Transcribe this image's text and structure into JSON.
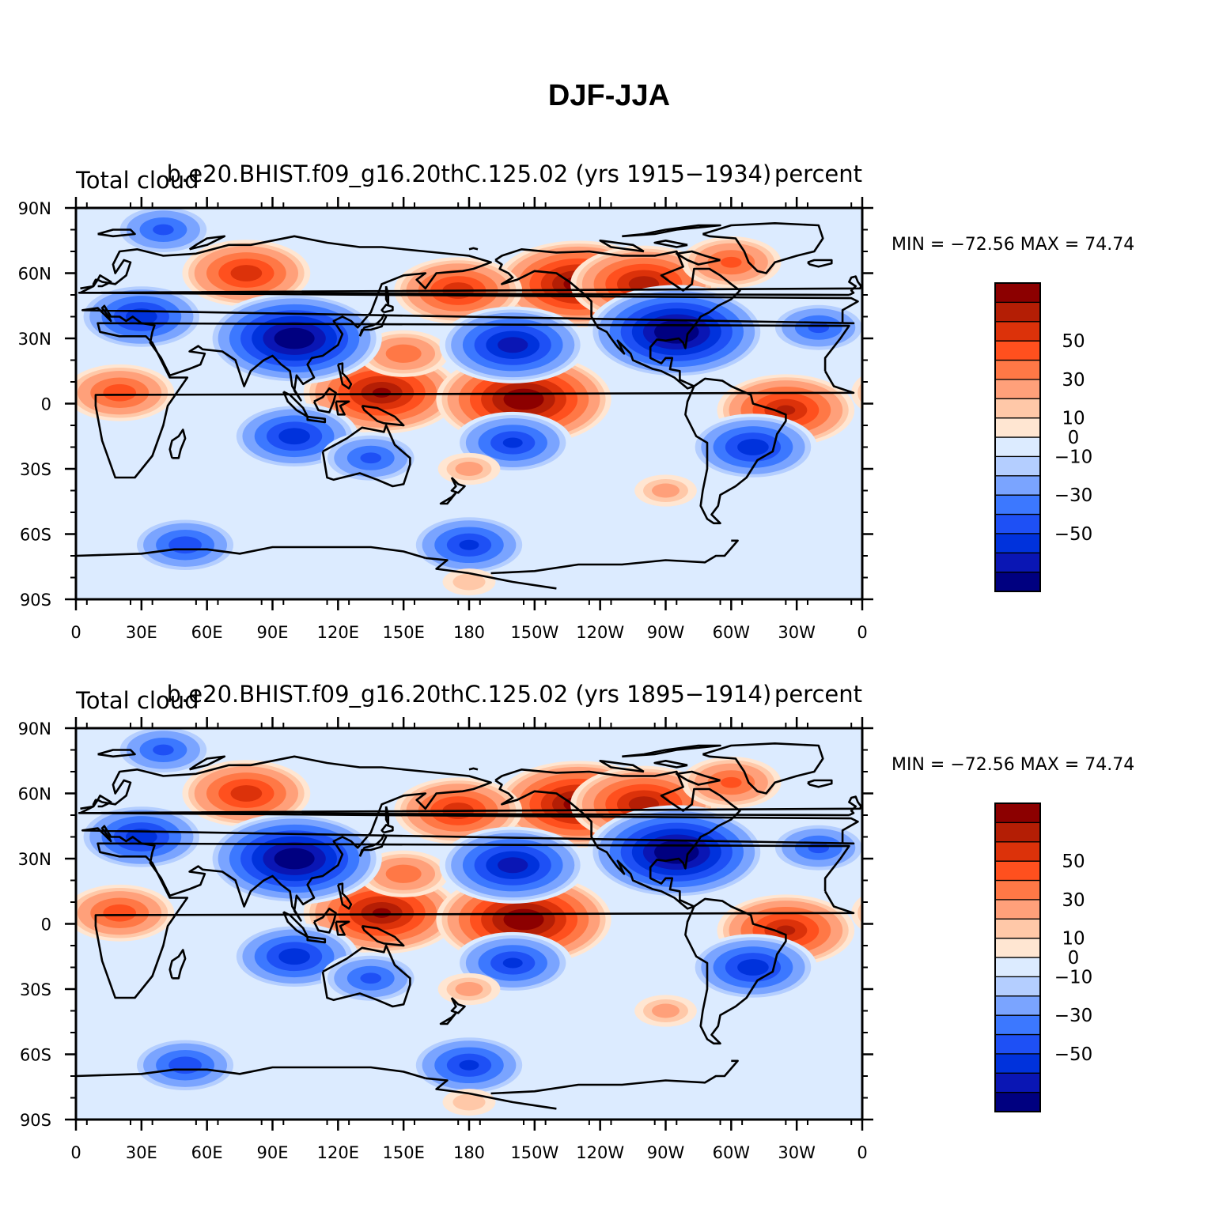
{
  "figure_title": "DJF-JJA",
  "colorbar": {
    "colors": [
      "#000080",
      "#0a16b4",
      "#0032dc",
      "#1e50f5",
      "#3c78ff",
      "#7aa4ff",
      "#b4ceff",
      "#dcebff",
      "#ffe6d2",
      "#ffc8a8",
      "#ffa07a",
      "#ff7846",
      "#ff501e",
      "#dc320a",
      "#b41e05",
      "#8c0000"
    ],
    "labels": [
      "−50",
      "−30",
      "−10",
      "0",
      "10",
      "30",
      "50"
    ]
  },
  "axis": {
    "x_tick_labels": [
      "0",
      "30E",
      "60E",
      "90E",
      "120E",
      "150E",
      "180",
      "150W",
      "120W",
      "90W",
      "60W",
      "30W",
      "0"
    ],
    "y_tick_labels": [
      "90N",
      "60N",
      "30N",
      "0",
      "30S",
      "60S",
      "90S"
    ]
  },
  "panels": [
    {
      "left_label": "Total cloud",
      "center_label": "b.e20.BHIST.f09_g16.20thC.125.02 (yrs 1915−1934)",
      "right_label": "percent",
      "minmax": "MIN = −72.56  MAX =   74.74"
    },
    {
      "left_label": "Total cloud",
      "center_label": "b.e20.BHIST.f09_g16.20thC.125.02 (yrs 1895−1914)",
      "right_label": "percent",
      "minmax": "MIN = −72.56  MAX =   74.74"
    }
  ],
  "chart_data": {
    "type": "heatmap",
    "title": "DJF-JJA",
    "variable": "Total cloud",
    "units": "percent",
    "season_difference": "DJF-JJA",
    "xlim": [
      0,
      360
    ],
    "ylim": [
      -90,
      90
    ],
    "contour_levels": [
      -60,
      -50,
      -40,
      -30,
      -20,
      -10,
      -5,
      0,
      5,
      10,
      20,
      30,
      40,
      50,
      60
    ],
    "panels": [
      {
        "case": "b.e20.BHIST.f09_g16.20thC.125.02",
        "years": "1915−1934",
        "min": -72.56,
        "max": 74.74
      },
      {
        "case": "b.e20.BHIST.f09_g16.20thC.125.02",
        "years": "1895−1914",
        "min": -72.56,
        "max": 74.74
      }
    ],
    "features": [
      {
        "lon": 140,
        "lat": 5,
        "value": 60
      },
      {
        "lon": 205,
        "lat": 2,
        "value": 70
      },
      {
        "lon": 230,
        "lat": 55,
        "value": 65
      },
      {
        "lon": 175,
        "lat": 52,
        "value": 45
      },
      {
        "lon": 260,
        "lat": 55,
        "value": 55
      },
      {
        "lon": 78,
        "lat": 60,
        "value": 45
      },
      {
        "lon": 20,
        "lat": 5,
        "value": 35
      },
      {
        "lon": 325,
        "lat": -3,
        "value": 50
      },
      {
        "lon": 150,
        "lat": 23,
        "value": 25
      },
      {
        "lon": 300,
        "lat": 65,
        "value": 30
      },
      {
        "lon": 100,
        "lat": 30,
        "value": -70
      },
      {
        "lon": 275,
        "lat": 33,
        "value": -72
      },
      {
        "lon": 200,
        "lat": 27,
        "value": -55
      },
      {
        "lon": 100,
        "lat": -15,
        "value": -45
      },
      {
        "lon": 200,
        "lat": -18,
        "value": -40
      },
      {
        "lon": 310,
        "lat": -20,
        "value": -45
      },
      {
        "lon": 30,
        "lat": 40,
        "value": -45
      },
      {
        "lon": 180,
        "lat": -65,
        "value": -40
      },
      {
        "lon": 50,
        "lat": -65,
        "value": -35
      },
      {
        "lon": 135,
        "lat": -25,
        "value": -30
      },
      {
        "lon": 340,
        "lat": 35,
        "value": -30
      },
      {
        "lon": 40,
        "lat": 80,
        "value": -30
      },
      {
        "lon": 180,
        "lat": -30,
        "value": 10
      },
      {
        "lon": 270,
        "lat": -40,
        "value": 10
      },
      {
        "lon": 180,
        "lat": -82,
        "value": 5
      }
    ]
  }
}
